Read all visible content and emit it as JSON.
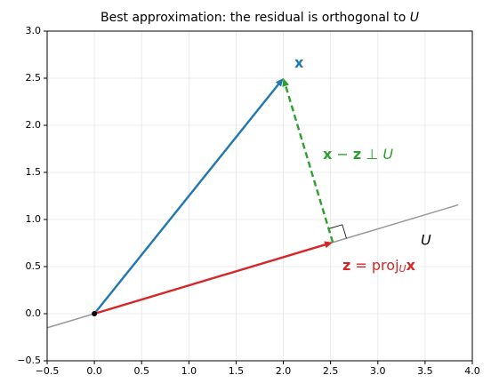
{
  "chart_data": {
    "type": "vector",
    "title": [
      "Best approximation: the residual is orthogonal to ",
      "U"
    ],
    "xlim": [
      -0.5,
      4.0
    ],
    "ylim": [
      -0.5,
      3.0
    ],
    "xticks": [
      {
        "value": -0.5,
        "label": "−0.5"
      },
      {
        "value": 0,
        "label": "0.0"
      },
      0.5,
      {
        "value": 1,
        "label": "1.0"
      },
      1.5,
      {
        "value": 2,
        "label": "2.0"
      },
      2.5,
      {
        "value": 3,
        "label": "3.0"
      },
      3.5,
      {
        "value": 4,
        "label": "4.0"
      }
    ],
    "yticks": [
      {
        "value": -0.5,
        "label": "−0.5"
      },
      {
        "value": 0,
        "label": "0.0"
      },
      0.5,
      {
        "value": 1,
        "label": "1.0"
      },
      1.5,
      {
        "value": 2,
        "label": "2.0"
      },
      2.5,
      {
        "value": 3,
        "label": "3.0"
      }
    ],
    "grid": true,
    "line": {
      "name": "U",
      "x": [
        -0.5,
        3.85
      ],
      "y": [
        -0.15,
        1.155
      ],
      "color": "#999999"
    },
    "point": [
      0,
      0
    ],
    "vectors": [
      {
        "label": [
          "x"
        ],
        "from": [
          0,
          0
        ],
        "to": [
          2,
          2.5
        ],
        "color": "#1f77b4"
      },
      {
        "label": [
          "z",
          " = proj",
          "U",
          "x"
        ],
        "from": [
          0,
          0
        ],
        "to": [
          2.523,
          0.757
        ],
        "color": "#d62728"
      },
      {
        "label": [
          "x",
          " − ",
          "z",
          " ⊥ ",
          "U"
        ],
        "from": [
          2.523,
          0.757
        ],
        "to": [
          2,
          2.5
        ],
        "color": "#2ca02c",
        "dashed": true
      }
    ]
  }
}
